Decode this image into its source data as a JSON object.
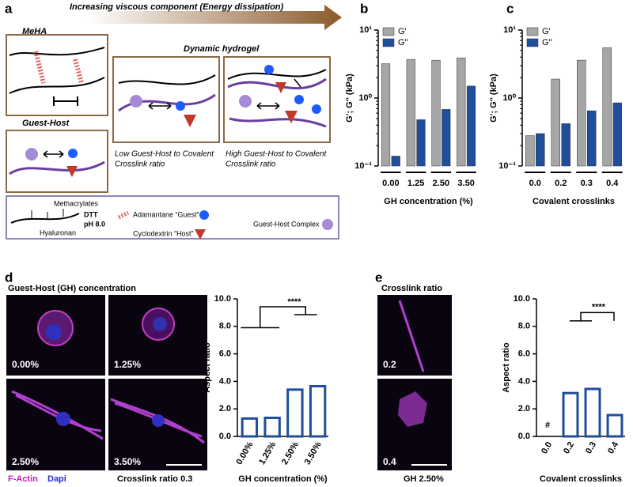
{
  "figure": {
    "panel_labels": [
      "a",
      "b",
      "c",
      "d",
      "e"
    ],
    "arrow_title": "Increasing viscous component (Energy dissipation)",
    "schematic": {
      "meha": "MeHA",
      "guest_host": "Guest-Host",
      "dynamic": "Dynamic hydrogel",
      "low_caption": [
        "Low Guest-Host to Covalent",
        "Crosslink ratio"
      ],
      "high_caption": [
        "High Guest-Host to Covalent",
        "Crosslink ratio"
      ],
      "legend": {
        "methacrylates": "Methacrylates",
        "hyaluronan": "Hyaluronan",
        "dtt": "DTT",
        "ph": "pH 8.0",
        "adamantane": "Adamantane “Guest”",
        "cyclodextrin": "Cyclodextrin “Host”",
        "complex": "Guest-Host Complex"
      }
    },
    "micrographs_d": {
      "header": "Guest-Host (GH) concentration",
      "labels": [
        "0.00%",
        "1.25%",
        "2.50%",
        "3.50%"
      ],
      "stain_actin": "F-Actin",
      "stain_dapi": "Dapi",
      "footer": "Crosslink ratio 0.3"
    },
    "micrographs_e": {
      "header": "Crosslink ratio",
      "labels": [
        "0.2",
        "0.4"
      ],
      "footer": "GH 2.50%"
    }
  },
  "chart_data": [
    {
      "type": "bar",
      "yscale": "log",
      "xlabel": "GH concentration (%)",
      "ylabel": "G'; G'' (kPa)",
      "categories": [
        "0.00",
        "1.25",
        "2.50",
        "3.50"
      ],
      "series": [
        {
          "name": "G'",
          "color": "#a6a6a6",
          "values": [
            3.2,
            3.7,
            3.6,
            3.9
          ]
        },
        {
          "name": "G''",
          "color": "#1f4e9a",
          "values": [
            0.14,
            0.48,
            0.68,
            1.5
          ]
        }
      ],
      "ylim": [
        0.1,
        10
      ],
      "yticks": [
        {
          "value": 0.1,
          "label": "10⁻¹"
        },
        {
          "value": 1,
          "label": "10⁰"
        },
        {
          "value": 10,
          "label": "10¹"
        }
      ]
    },
    {
      "type": "bar",
      "yscale": "log",
      "xlabel": "Covalent crosslinks",
      "ylabel": "G'; G'' (kPa)",
      "categories": [
        "0.0",
        "0.2",
        "0.3",
        "0.4"
      ],
      "series": [
        {
          "name": "G'",
          "color": "#a6a6a6",
          "values": [
            0.28,
            1.9,
            3.6,
            5.5
          ]
        },
        {
          "name": "G''",
          "color": "#1f4e9a",
          "values": [
            0.3,
            0.42,
            0.65,
            0.85
          ]
        }
      ],
      "ylim": [
        0.1,
        10
      ],
      "yticks": [
        {
          "value": 0.1,
          "label": "10⁻¹"
        },
        {
          "value": 1,
          "label": "10⁰"
        },
        {
          "value": 10,
          "label": "10¹"
        }
      ]
    },
    {
      "type": "bar",
      "xlabel": "GH concentration (%)",
      "ylabel": "Aspect ratio",
      "categories": [
        "0.00%",
        "1.25%",
        "2.50%",
        "3.50%"
      ],
      "values": [
        1.3,
        1.35,
        3.4,
        3.65
      ],
      "color": "#1f4e9a",
      "ylim": [
        0,
        10
      ],
      "yticks": [
        {
          "value": 0,
          "label": "0.0"
        },
        {
          "value": 2,
          "label": "2.0"
        },
        {
          "value": 4,
          "label": "4.0"
        },
        {
          "value": 6,
          "label": "6.0"
        },
        {
          "value": 8,
          "label": "8.0"
        },
        {
          "value": 10,
          "label": "10.0"
        }
      ],
      "significance": "****"
    },
    {
      "type": "bar",
      "xlabel": "Covalent crosslinks",
      "ylabel": "Aspect ratio",
      "categories": [
        "0.0",
        "0.2",
        "0.3",
        "0.4"
      ],
      "values": [
        0,
        3.15,
        3.45,
        1.55
      ],
      "color": "#1f4e9a",
      "ylim": [
        0,
        10
      ],
      "yticks": [
        {
          "value": 0,
          "label": "0.0"
        },
        {
          "value": 2,
          "label": "2.0"
        },
        {
          "value": 4,
          "label": "4.0"
        },
        {
          "value": 6,
          "label": "6.0"
        },
        {
          "value": 8,
          "label": "8.0"
        },
        {
          "value": 10,
          "label": "10.0"
        }
      ],
      "significance": "****",
      "annotation": "#"
    }
  ]
}
